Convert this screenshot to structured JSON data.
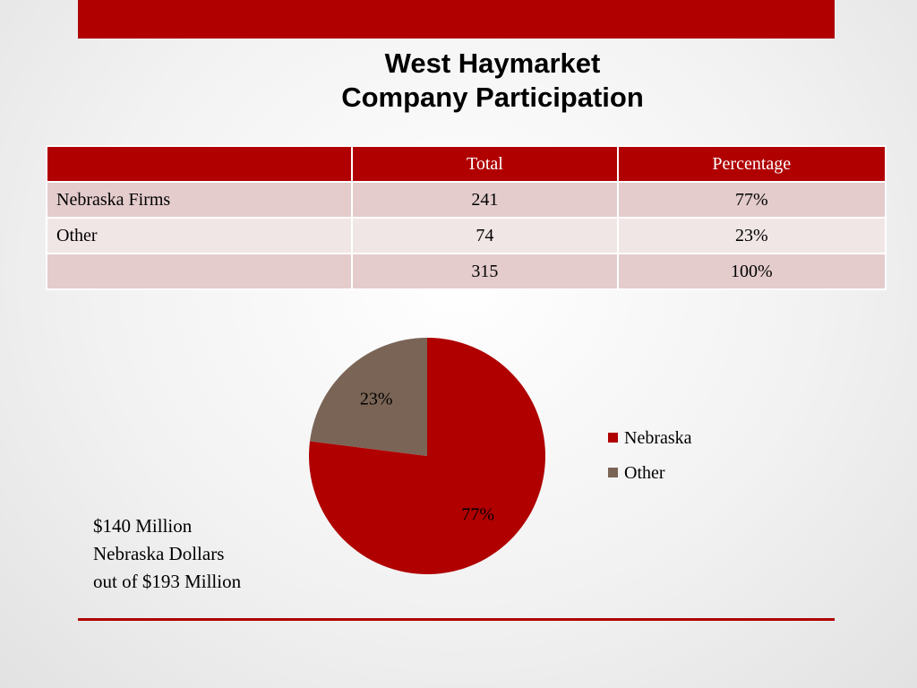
{
  "title": {
    "line1": "West Haymarket",
    "line2": "Company Participation"
  },
  "table": {
    "headers": [
      "",
      "Total",
      "Percentage"
    ],
    "rows": [
      [
        "Nebraska Firms",
        "241",
        "77%"
      ],
      [
        "Other",
        "74",
        "23%"
      ],
      [
        "",
        "315",
        "100%"
      ]
    ]
  },
  "chart_data": {
    "type": "pie",
    "categories": [
      "Nebraska",
      "Other"
    ],
    "values": [
      77,
      23
    ],
    "labels": [
      "77%",
      "23%"
    ],
    "colors": [
      "#b00000",
      "#7a6455"
    ],
    "legend_position": "right"
  },
  "note": {
    "line1": "$140 Million",
    "line2": "Nebraska Dollars",
    "line3": "out of $193 Million"
  },
  "colors": {
    "accent": "#b00000",
    "header_row": "#b00000",
    "row_shade_dark": "#e4cccc",
    "row_shade_light": "#f1e6e6"
  }
}
